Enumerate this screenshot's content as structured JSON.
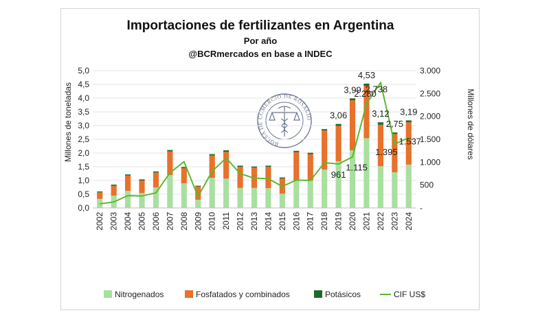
{
  "chart_data": {
    "type": "bar",
    "stacked": true,
    "title": "Importaciones de fertilizantes en Argentina",
    "subtitle": "Por año",
    "source": "@BCRmercados en base a INDEC",
    "ylabel": "Millones de toneladas",
    "y2label": "Millones de dólares",
    "ylim": [
      0,
      5
    ],
    "y2lim": [
      0,
      3000
    ],
    "yticks": [
      "0,0",
      "0,5",
      "1,0",
      "1,5",
      "2,0",
      "2,5",
      "3,0",
      "3,5",
      "4,0",
      "4,5",
      "5,0"
    ],
    "y2ticks": [
      "-",
      "500",
      "1.000",
      "1.500",
      "2.000",
      "2.500",
      "3.000"
    ],
    "categories": [
      "2002",
      "2003",
      "2004",
      "2005",
      "2006",
      "2007",
      "2008",
      "2009",
      "2010",
      "2011",
      "2012",
      "2013",
      "2014",
      "2015",
      "2016",
      "2017",
      "2018",
      "2019",
      "2020",
      "2021",
      "2022",
      "2023",
      "2024"
    ],
    "series": [
      {
        "name": "Nitrogenados",
        "color": "#a9dfa0",
        "values": [
          0.33,
          0.45,
          0.62,
          0.54,
          0.75,
          1.2,
          0.9,
          0.3,
          1.1,
          1.07,
          0.73,
          0.73,
          0.72,
          0.52,
          1.0,
          1.0,
          1.4,
          1.7,
          2.1,
          2.54,
          1.52,
          1.3,
          1.58
        ]
      },
      {
        "name": "Fosfatados y combinados",
        "color": "#e8712b",
        "values": [
          0.24,
          0.36,
          0.56,
          0.46,
          0.54,
          0.86,
          0.55,
          0.48,
          0.81,
          0.98,
          0.77,
          0.74,
          0.78,
          0.55,
          1.03,
          0.96,
          1.42,
          1.29,
          1.82,
          1.91,
          1.51,
          1.4,
          1.54
        ]
      },
      {
        "name": "Potásicos",
        "color": "#1d6b2a",
        "values": [
          0.03,
          0.04,
          0.04,
          0.04,
          0.04,
          0.05,
          0.04,
          0.03,
          0.05,
          0.05,
          0.04,
          0.04,
          0.04,
          0.04,
          0.05,
          0.05,
          0.05,
          0.07,
          0.07,
          0.08,
          0.09,
          0.05,
          0.07
        ]
      },
      {
        "name": "CIF US$",
        "color": "#5cb82e",
        "type": "line",
        "axis": "right",
        "values": [
          90,
          130,
          270,
          260,
          330,
          770,
          1010,
          250,
          800,
          1090,
          750,
          650,
          640,
          470,
          610,
          600,
          990,
          961,
          1115,
          2280,
          2738,
          1395,
          1537
        ]
      }
    ],
    "total_labels": [
      {
        "category": "2019",
        "text": "3,06"
      },
      {
        "category": "2020",
        "text": "3,99"
      },
      {
        "category": "2021",
        "text": "4,53"
      },
      {
        "category": "2022",
        "text": "3,12"
      },
      {
        "category": "2023",
        "text": "2,75"
      },
      {
        "category": "2024",
        "text": "3,19"
      }
    ],
    "line_labels": [
      {
        "category": "2019",
        "text": "961"
      },
      {
        "category": "2020",
        "text": "1.115"
      },
      {
        "category": "2021",
        "text": "2.280"
      },
      {
        "category": "2022",
        "text": "2.738"
      },
      {
        "category": "2023",
        "text": "1.395"
      },
      {
        "category": "2024",
        "text": "1.537"
      }
    ],
    "legend_position": "bottom"
  },
  "seal": {
    "text": "BOLSA DE COMERCIO DE ROSARIO",
    "color": "#6b7590",
    "icon": "caduceus-scales-icon"
  }
}
